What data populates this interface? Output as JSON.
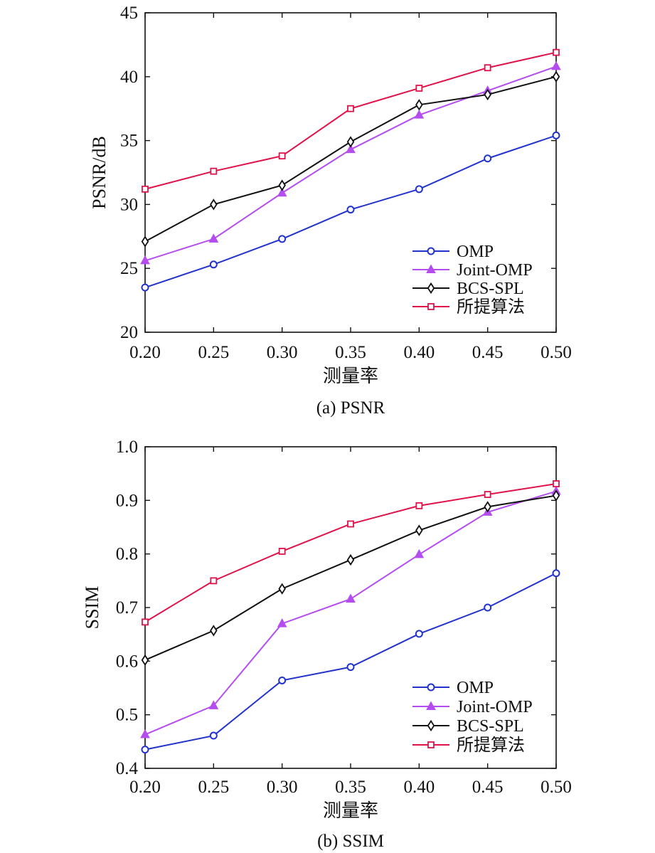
{
  "chart_data": [
    {
      "type": "line",
      "caption": "(a) PSNR",
      "xlabel": "测量率",
      "ylabel": "PSNR/dB",
      "x": [
        0.2,
        0.25,
        0.3,
        0.35,
        0.4,
        0.45,
        0.5
      ],
      "x_tick_labels": [
        "0.20",
        "0.25",
        "0.30",
        "0.35",
        "0.40",
        "0.45",
        "0.50"
      ],
      "xlim": [
        0.2,
        0.5
      ],
      "ylim": [
        20,
        45
      ],
      "y_ticks": [
        20,
        25,
        30,
        35,
        40,
        45
      ],
      "y_tick_labels": [
        "20",
        "25",
        "30",
        "35",
        "40",
        "45"
      ],
      "grid": false,
      "legend_position": "bottom-right",
      "series": [
        {
          "name": "OMP",
          "color": "#2233cc",
          "marker": "circle",
          "values": [
            23.5,
            25.3,
            27.3,
            29.6,
            31.2,
            33.6,
            35.4
          ]
        },
        {
          "name": "Joint-OMP",
          "color": "#b44cf0",
          "marker": "triangle",
          "values": [
            25.6,
            27.3,
            30.9,
            34.3,
            37.0,
            38.9,
            40.8
          ]
        },
        {
          "name": "BCS-SPL",
          "color": "#111111",
          "marker": "diamond",
          "values": [
            27.1,
            30.0,
            31.5,
            34.9,
            37.8,
            38.6,
            40.0
          ]
        },
        {
          "name": "所提算法",
          "color": "#e0124a",
          "marker": "square",
          "values": [
            31.2,
            32.6,
            33.8,
            37.5,
            39.1,
            40.7,
            41.9
          ]
        }
      ]
    },
    {
      "type": "line",
      "caption": "(b) SSIM",
      "xlabel": "测量率",
      "ylabel": "SSIM",
      "x": [
        0.2,
        0.25,
        0.3,
        0.35,
        0.4,
        0.45,
        0.5
      ],
      "x_tick_labels": [
        "0.20",
        "0.25",
        "0.30",
        "0.35",
        "0.40",
        "0.45",
        "0.50"
      ],
      "xlim": [
        0.2,
        0.5
      ],
      "ylim": [
        0.4,
        1.0
      ],
      "y_ticks": [
        0.4,
        0.5,
        0.6,
        0.7,
        0.8,
        0.9,
        1.0
      ],
      "y_tick_labels": [
        "0.4",
        "0.5",
        "0.6",
        "0.7",
        "0.8",
        "0.9",
        "1.0"
      ],
      "grid": false,
      "legend_position": "bottom-right",
      "series": [
        {
          "name": "OMP",
          "color": "#2233cc",
          "marker": "circle",
          "values": [
            0.435,
            0.461,
            0.564,
            0.589,
            0.651,
            0.7,
            0.764
          ]
        },
        {
          "name": "Joint-OMP",
          "color": "#b44cf0",
          "marker": "triangle",
          "values": [
            0.463,
            0.517,
            0.67,
            0.716,
            0.799,
            0.878,
            0.917
          ]
        },
        {
          "name": "BCS-SPL",
          "color": "#111111",
          "marker": "diamond",
          "values": [
            0.602,
            0.657,
            0.735,
            0.789,
            0.844,
            0.888,
            0.909
          ]
        },
        {
          "name": "所提算法",
          "color": "#e0124a",
          "marker": "square",
          "values": [
            0.673,
            0.75,
            0.805,
            0.856,
            0.89,
            0.911,
            0.931
          ]
        }
      ]
    }
  ]
}
